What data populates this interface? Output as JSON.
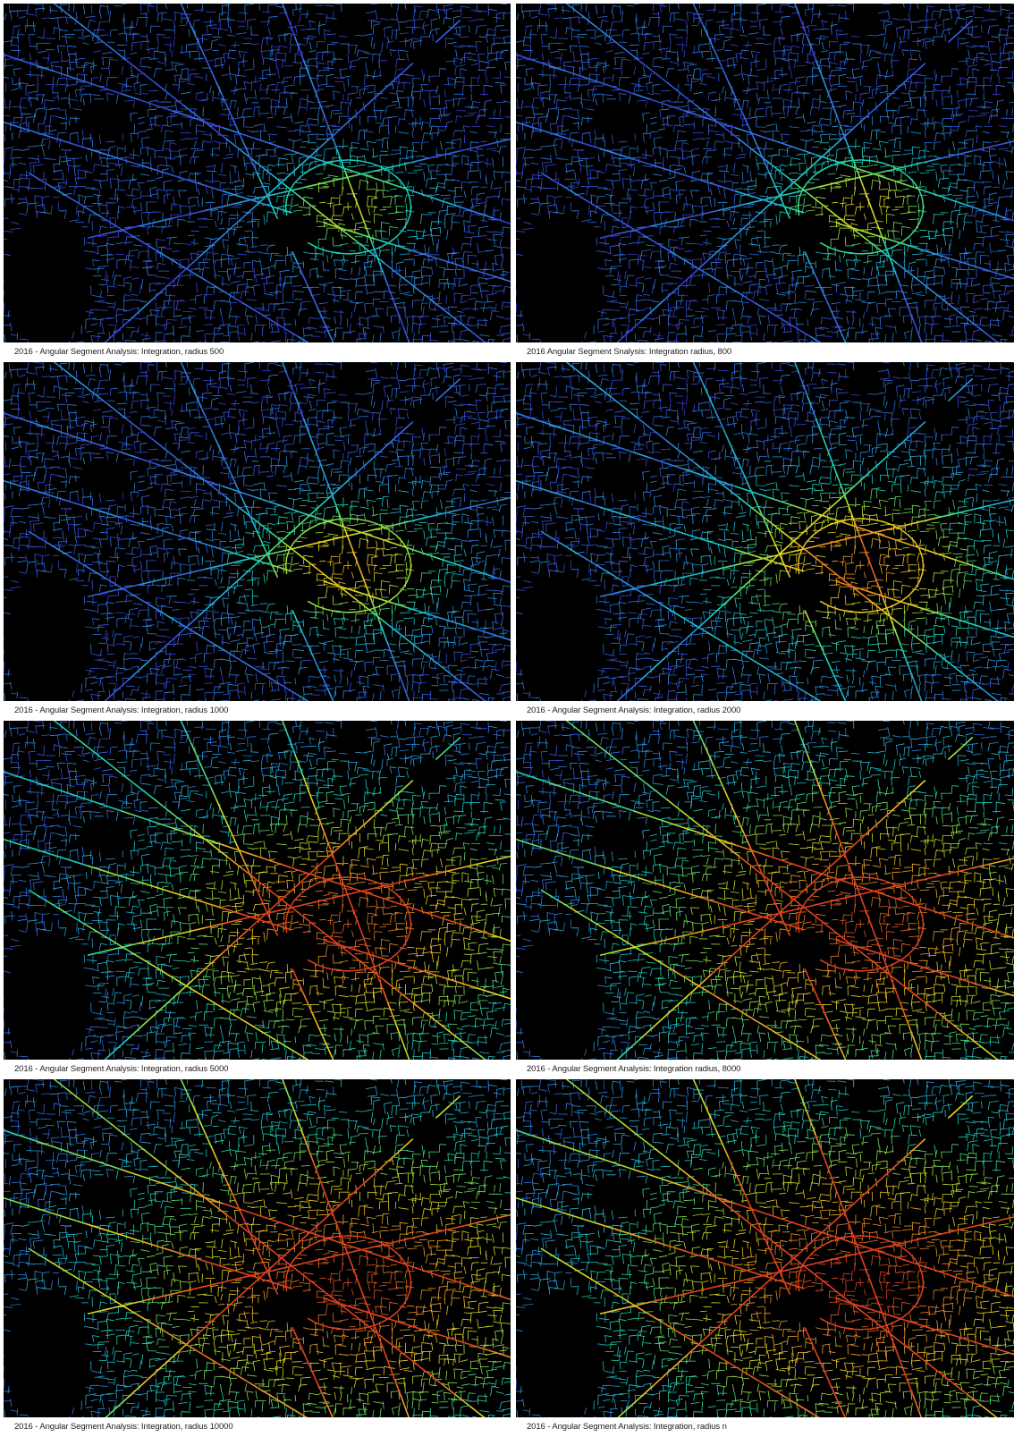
{
  "colormap": {
    "name": "jet-like",
    "stops": [
      "#2a1f8f",
      "#3b3bd6",
      "#2f74e0",
      "#1fb7d6",
      "#1fd6a8",
      "#9be03a",
      "#e6d61f",
      "#f09a1f",
      "#e2401f"
    ]
  },
  "background_color": "#000000",
  "panels": [
    {
      "caption": "2016 - Angular Segment Analysis: Integration, radius 500",
      "radius_value": 500,
      "center_intensity": 0.72,
      "spread": 0.18
    },
    {
      "caption": "2016 Angular Segment Snalysis: Integration radius, 800",
      "radius_value": 800,
      "center_intensity": 0.76,
      "spread": 0.2
    },
    {
      "caption": "2016 - Angular Segment Analysis: Integration, radius 1000",
      "radius_value": 1000,
      "center_intensity": 0.82,
      "spread": 0.23
    },
    {
      "caption": "2016 - Angular Segment Analysis: Integration, radius 2000",
      "radius_value": 2000,
      "center_intensity": 0.88,
      "spread": 0.3
    },
    {
      "caption": "2016 - Angular Segment Analysis: Integration, radius 5000",
      "radius_value": 5000,
      "center_intensity": 0.95,
      "spread": 0.45
    },
    {
      "caption": "2016 - Angular Segment Analysis: Integration radius, 8000",
      "radius_value": 8000,
      "center_intensity": 0.97,
      "spread": 0.5
    },
    {
      "caption": "2016 - Angular Segment Analysis: Integration, radius 10000",
      "radius_value": 10000,
      "center_intensity": 0.98,
      "spread": 0.53
    },
    {
      "caption": "2016 - Angular Segment Analysis: Integration, radius n",
      "radius_value": "n",
      "center_intensity": 1.0,
      "spread": 0.56
    }
  ]
}
